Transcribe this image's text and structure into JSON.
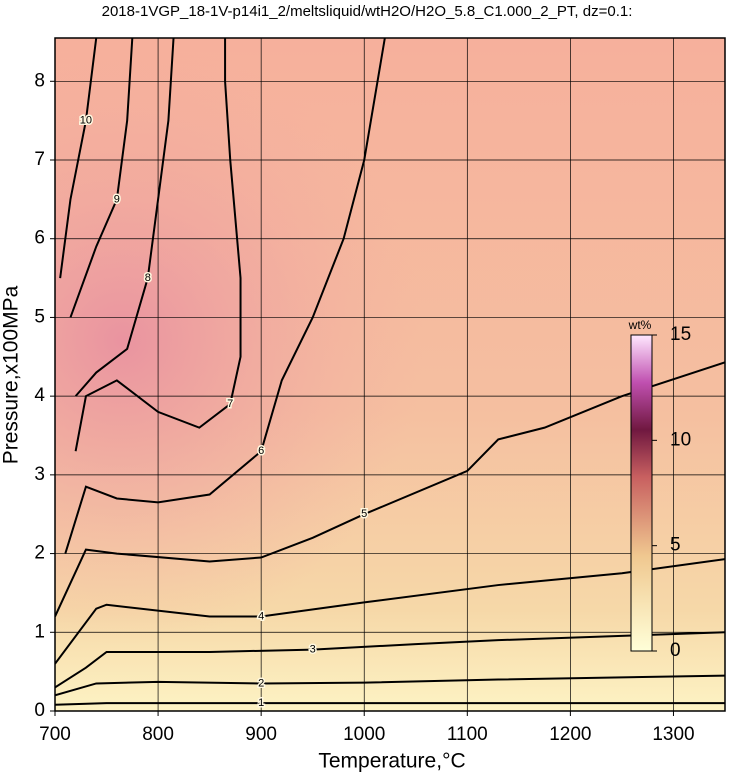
{
  "chart_data": {
    "type": "contour",
    "title": "2018-1VGP_18-1V-p14i1_2/meltsliquid/wtH2O/H2O_5.8_C1.000_2_PT, dz=0.1:",
    "x_label": "Temperature,°C",
    "y_label": "Pressure,x100MPa",
    "xlim": [
      700,
      1350
    ],
    "ylim": [
      0,
      8.55
    ],
    "xticks": [
      700,
      800,
      900,
      1000,
      1100,
      1200,
      1300
    ],
    "yticks": [
      0,
      1,
      2,
      3,
      4,
      5,
      6,
      7,
      8
    ],
    "grid": true,
    "colorbar": {
      "label": "wt%",
      "lim": [
        0,
        15
      ],
      "ticks": [
        0,
        5,
        10,
        15
      ]
    },
    "series": [
      {
        "level": 1,
        "color": "#000000",
        "x": [
          700,
          750,
          900,
          1130,
          1350
        ],
        "y": [
          0.08,
          0.1,
          0.1,
          0.1,
          0.1
        ]
      },
      {
        "level": 2,
        "color": "#000000",
        "x": [
          700,
          740,
          800,
          900,
          1000,
          1130,
          1350
        ],
        "y": [
          0.2,
          0.35,
          0.37,
          0.35,
          0.36,
          0.4,
          0.45
        ]
      },
      {
        "level": 3,
        "color": "#000000",
        "x": [
          700,
          730,
          750,
          850,
          950,
          1050,
          1130,
          1350
        ],
        "y": [
          0.3,
          0.55,
          0.75,
          0.75,
          0.78,
          0.85,
          0.9,
          1.0
        ]
      },
      {
        "level": 4,
        "color": "#000000",
        "x": [
          700,
          740,
          750,
          850,
          900,
          1000,
          1130,
          1250,
          1350
        ],
        "y": [
          0.6,
          1.3,
          1.35,
          1.2,
          1.2,
          1.38,
          1.6,
          1.75,
          1.93
        ]
      },
      {
        "level": 5,
        "color": "#000000",
        "x": [
          700,
          730,
          760,
          850,
          900,
          950,
          1000,
          1100,
          1130,
          1175,
          1250,
          1350
        ],
        "y": [
          1.2,
          2.05,
          2.0,
          1.9,
          1.95,
          2.2,
          2.5,
          3.05,
          3.45,
          3.6,
          4.0,
          4.43
        ]
      },
      {
        "level": 6,
        "color": "#000000",
        "x": [
          710,
          730,
          760,
          800,
          850,
          900,
          920,
          950,
          980,
          1000,
          1020
        ],
        "y": [
          2.0,
          2.85,
          2.7,
          2.65,
          2.75,
          3.3,
          4.2,
          5.0,
          6.0,
          7.0,
          8.55
        ]
      },
      {
        "level": 7,
        "color": "#000000",
        "x": [
          720,
          730,
          760,
          800,
          840,
          870,
          880,
          880,
          870,
          865,
          865
        ],
        "y": [
          3.3,
          4.0,
          4.2,
          3.8,
          3.6,
          3.9,
          4.5,
          5.5,
          7.0,
          8.0,
          8.55
        ]
      },
      {
        "level": 8,
        "color": "#000000",
        "x": [
          720,
          740,
          770,
          790,
          800,
          810,
          815
        ],
        "y": [
          4.0,
          4.3,
          4.6,
          5.5,
          6.5,
          7.5,
          8.55
        ]
      },
      {
        "level": 9,
        "color": "#000000",
        "x": [
          715,
          740,
          760,
          770,
          775
        ],
        "y": [
          5.0,
          5.9,
          6.5,
          7.5,
          8.55
        ]
      },
      {
        "level": 10,
        "color": "#000000",
        "x": [
          705,
          715,
          730,
          740
        ],
        "y": [
          5.5,
          6.5,
          7.5,
          8.55
        ]
      }
    ]
  }
}
